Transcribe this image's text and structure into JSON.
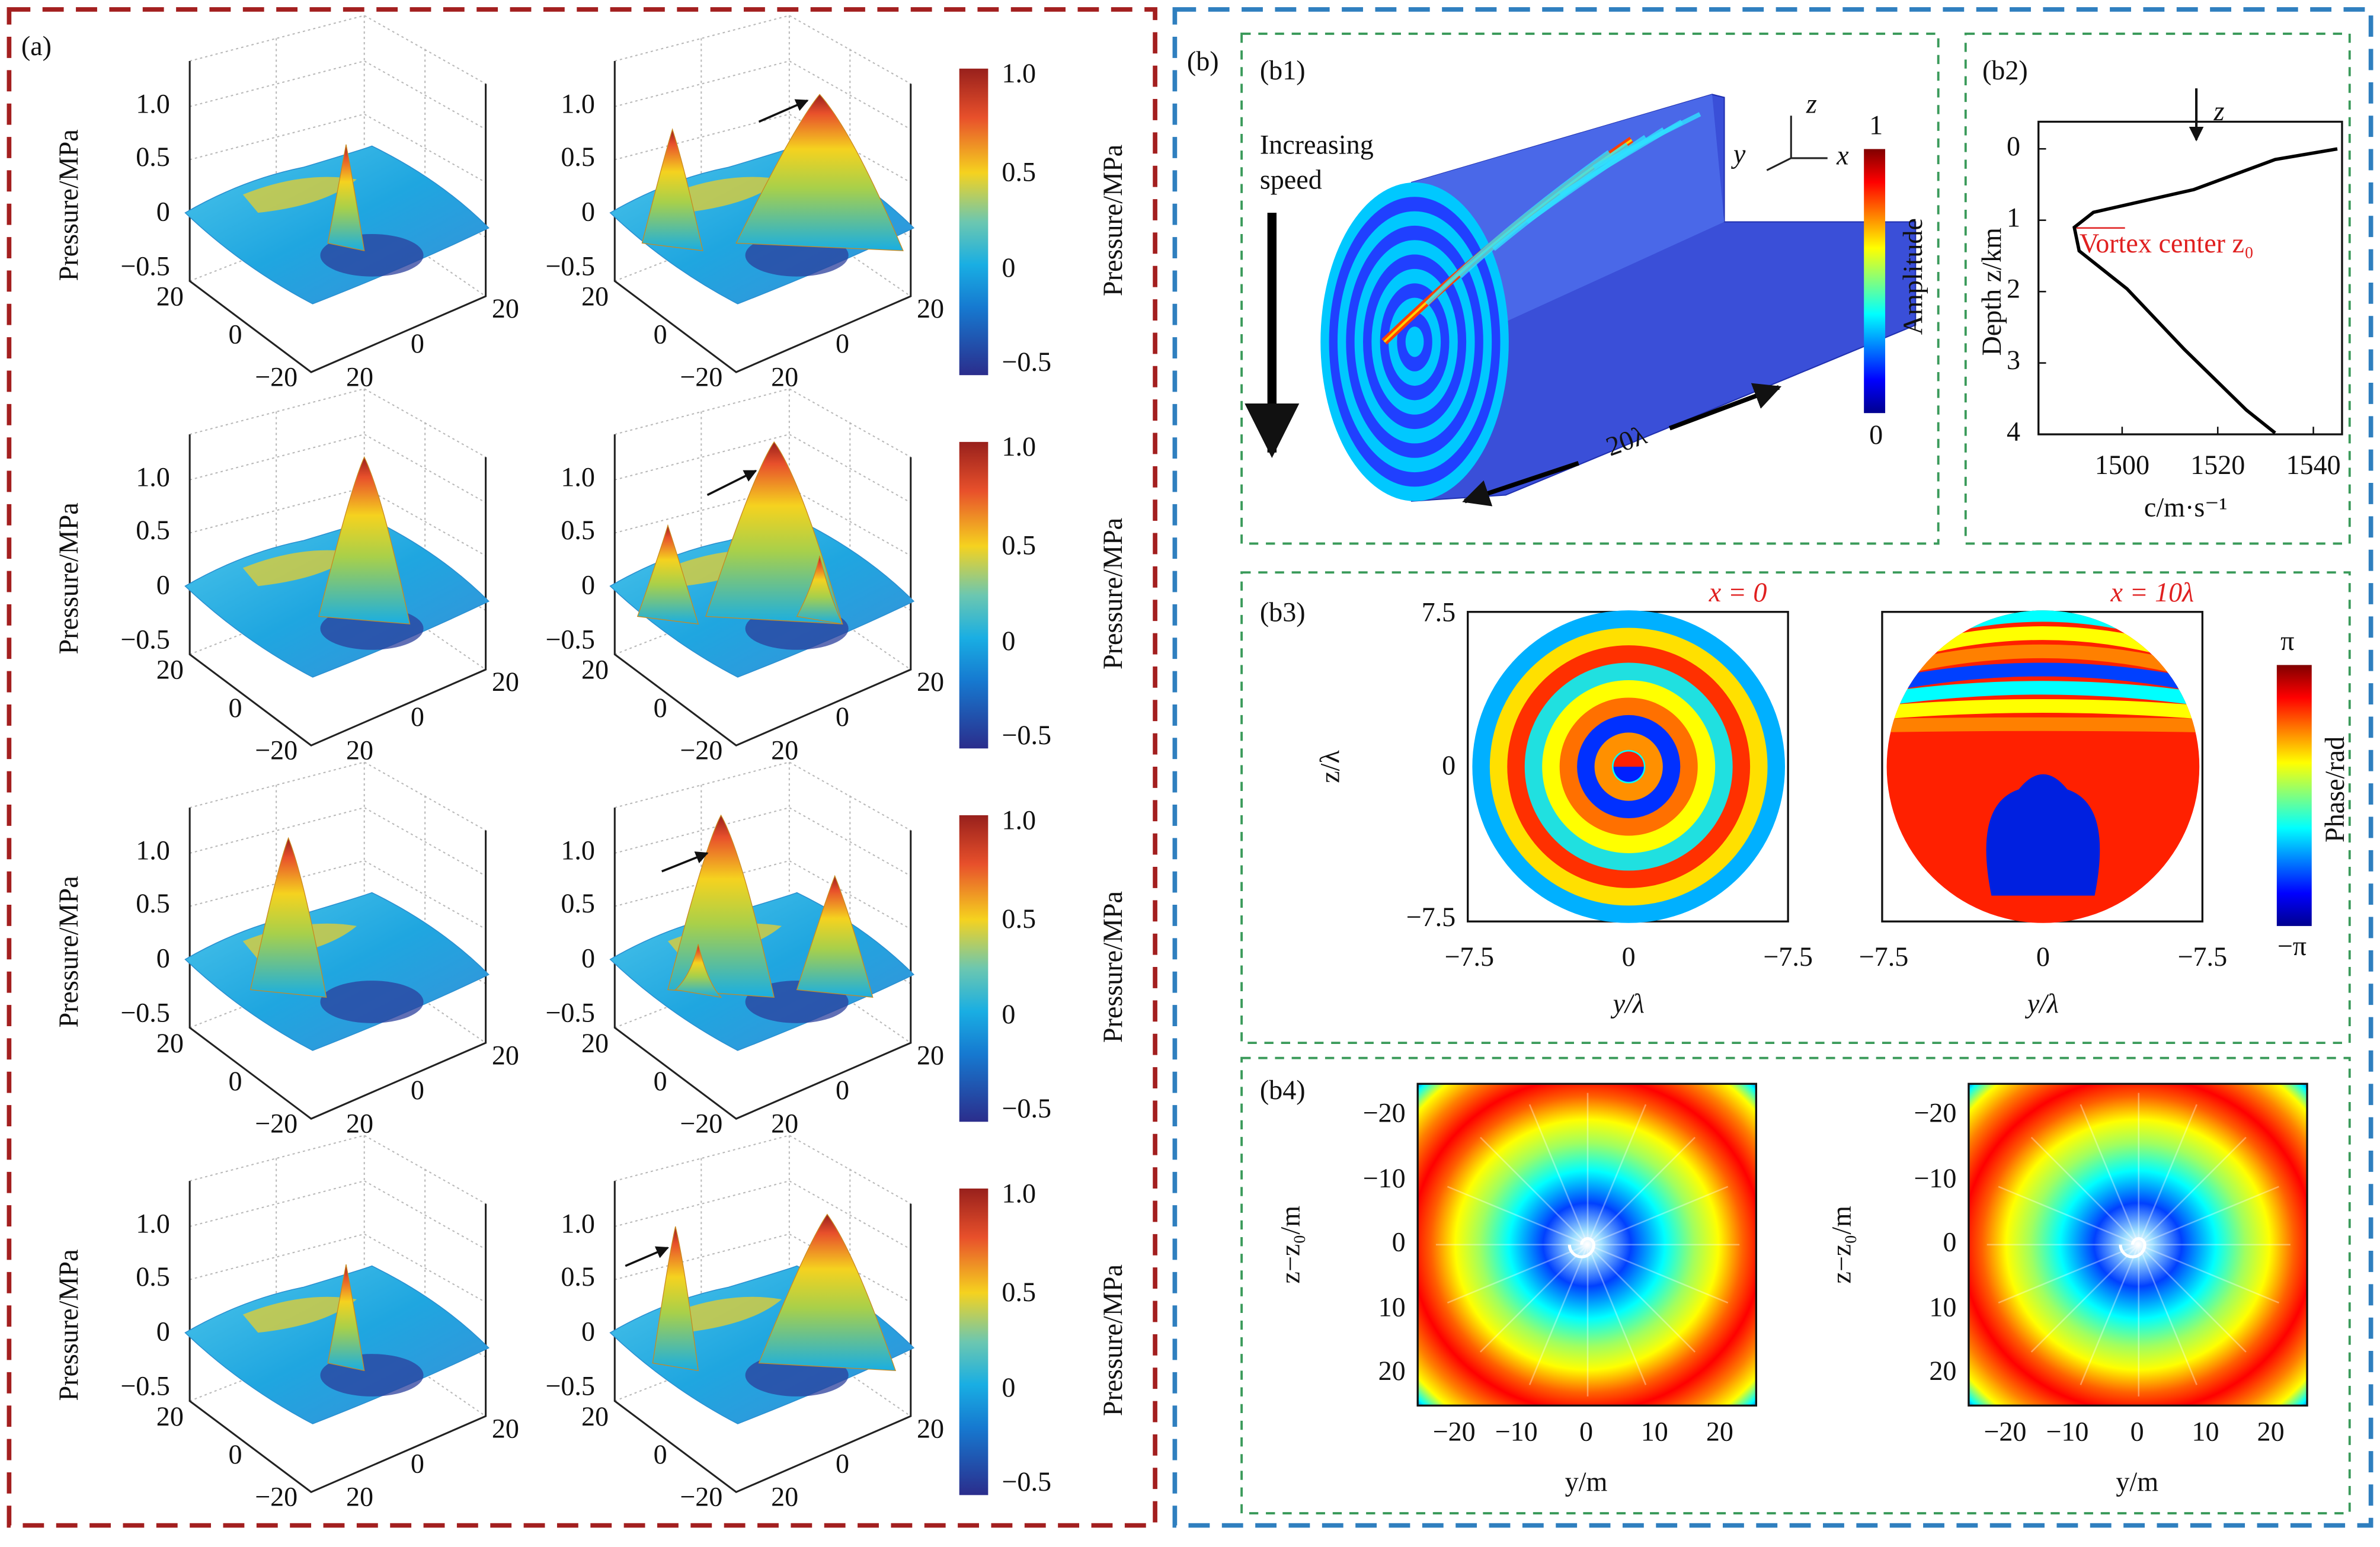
{
  "panel_a": {
    "label": "(a)",
    "z_label": "Pressure/MPa",
    "z_ticks": [
      "1.0",
      "0.5",
      "0",
      "−0.5"
    ],
    "floor_ticks_left": [
      "20",
      "0",
      "−20"
    ],
    "floor_ticks_right": [
      "20",
      "0",
      "20"
    ],
    "colorbar_ticks": [
      "1.0",
      "0.5",
      "0",
      "−0.5"
    ]
  },
  "panel_b": {
    "label": "(b)",
    "b1": {
      "label": "(b1)",
      "note": [
        "Increasing",
        "speed"
      ],
      "axes": [
        "z",
        "y",
        "x"
      ],
      "length": "20λ",
      "colorbar_label": "Amplitude",
      "colorbar_ticks": [
        "1",
        "0"
      ]
    },
    "b3": {
      "label": "(b3)",
      "titles": [
        "x = 0",
        "x = 10λ"
      ],
      "yticks": [
        "7.5",
        "0",
        "−7.5"
      ],
      "xticks": [
        "−7.5",
        "0",
        "−7.5"
      ],
      "ylabel": "z/λ",
      "xlabel": "y/λ",
      "colorbar_label": "Phase/rad",
      "colorbar_ticks": [
        "π",
        "−π"
      ]
    },
    "b4": {
      "label": "(b4)",
      "yticks": [
        "−20",
        "−10",
        "0",
        "10",
        "20"
      ],
      "xticks": [
        "−20",
        "−10",
        "0",
        "10",
        "20"
      ],
      "ylabel": "z−z₀/m",
      "xlabel": "y/m"
    }
  },
  "chart_data": {
    "type": "line",
    "label": "(b2)",
    "xlabel": "c/m·s⁻¹",
    "ylabel": "Depth z/km",
    "annotation": "Vortex center z₀",
    "arrow_label": "z",
    "x": [
      1545,
      1532,
      1515,
      1494,
      1490,
      1491,
      1501,
      1513,
      1526,
      1532
    ],
    "values": [
      0,
      0.15,
      0.57,
      0.89,
      1.1,
      1.43,
      1.96,
      2.81,
      3.66,
      3.98
    ],
    "color": "#000000",
    "xlim": [
      1482.5,
      1546
    ],
    "ylim": [
      4.0,
      -0.38
    ],
    "xticks": [
      1500,
      1520,
      1540
    ],
    "yticks": [
      0,
      1,
      2,
      3,
      4
    ]
  }
}
